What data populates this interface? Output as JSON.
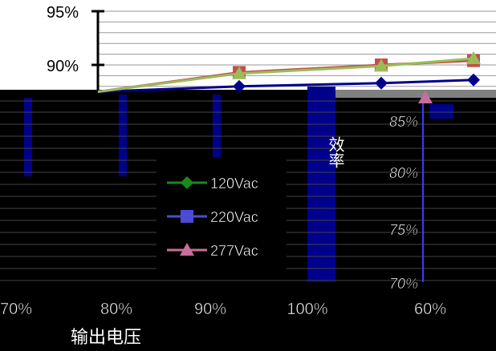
{
  "chart_data": {
    "type": "line",
    "categories": [
      "70%",
      "80%",
      "90%",
      "100%",
      "60%"
    ],
    "series": [
      {
        "name": "120Vac",
        "color": "#1a8a1a",
        "marker": "diamond",
        "values": [
          87.5,
          87.7,
          88.3,
          88.5,
          88.8
        ]
      },
      {
        "name": "220Vac",
        "color": "#4b4bd6",
        "marker": "square",
        "values": [
          87.6,
          88.2,
          89.3,
          90.0,
          90.5
        ]
      },
      {
        "name": "277Vac",
        "color": "#c86e9a",
        "marker": "triangle",
        "values": [
          87.6,
          88.2,
          89.2,
          89.9,
          90.6
        ]
      }
    ],
    "y_ticks_top": [
      "95%",
      "90%"
    ],
    "y_ticks_right": [
      "85%",
      "80%",
      "75%",
      "70%"
    ],
    "ylim": [
      70,
      95
    ],
    "xlabel": "输出电压",
    "ylabel": "效率",
    "legend_position": "center",
    "grid": true
  }
}
